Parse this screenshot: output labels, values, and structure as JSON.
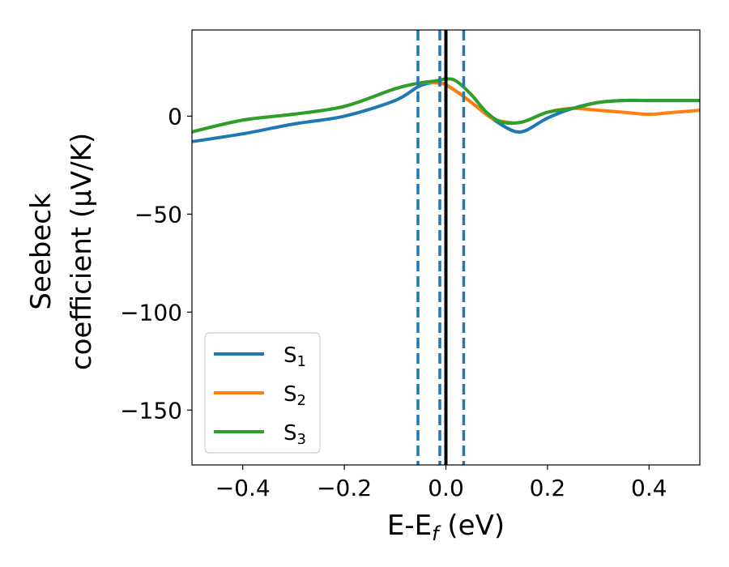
{
  "chart_data": {
    "type": "line",
    "xlabel": "E-E",
    "xlabel_sub": "f",
    "xlabel_unit": " (eV)",
    "ylabel_line1": "Seebeck",
    "ylabel_line2": "coefficient  (μV/K)",
    "xlim": [
      -0.5,
      0.5
    ],
    "ylim": [
      -178,
      44
    ],
    "xticks": [
      -0.4,
      -0.2,
      0.0,
      0.2,
      0.4
    ],
    "xtick_labels": [
      "−0.4",
      "−0.2",
      "0.0",
      "0.2",
      "0.4"
    ],
    "yticks": [
      0,
      -50,
      -100,
      -150
    ],
    "ytick_labels": [
      "0",
      "−50",
      "−100",
      "−150"
    ],
    "grid": false,
    "legend_position": "lower-left",
    "vlines": [
      {
        "x": -0.055,
        "style": "dashed",
        "color": "#1f77b4"
      },
      {
        "x": -0.012,
        "style": "dashed",
        "color": "#1f77b4"
      },
      {
        "x": 0.035,
        "style": "dashed",
        "color": "#1f77b4"
      },
      {
        "x": 0.0,
        "style": "solid",
        "color": "#000000"
      }
    ],
    "series": [
      {
        "name": "S",
        "sub": "1",
        "color": "#1f77b4",
        "x": [
          -0.5,
          -0.4,
          -0.3,
          -0.2,
          -0.1,
          -0.055,
          -0.03,
          -0.012,
          0.0,
          0.03,
          0.06,
          0.09,
          0.12,
          0.14,
          0.16,
          0.2,
          0.25,
          0.3,
          0.35,
          0.4,
          0.45,
          0.5
        ],
        "y": [
          -13,
          -9,
          -4,
          0,
          8,
          15,
          17,
          17,
          16,
          11,
          5,
          -1,
          -6,
          -8,
          -7,
          -1,
          4,
          7,
          8,
          8,
          8,
          8
        ]
      },
      {
        "name": "S",
        "sub": "2",
        "color": "#ff7f0e",
        "x": [
          -0.5,
          -0.4,
          -0.3,
          -0.2,
          -0.1,
          -0.05,
          -0.02,
          0.0,
          0.03,
          0.06,
          0.09,
          0.12,
          0.15,
          0.2,
          0.25,
          0.3,
          0.35,
          0.4,
          0.45,
          0.5
        ],
        "y": [
          -8,
          -2,
          1,
          5,
          14,
          17,
          17,
          16,
          11,
          5,
          -1,
          -3,
          -3,
          2,
          4,
          3,
          2,
          1,
          2,
          3
        ]
      },
      {
        "name": "S",
        "sub": "3",
        "color": "#2ca02c",
        "x": [
          -0.5,
          -0.4,
          -0.3,
          -0.2,
          -0.1,
          -0.05,
          -0.02,
          0.0,
          0.02,
          0.05,
          0.08,
          0.11,
          0.15,
          0.2,
          0.25,
          0.3,
          0.35,
          0.4,
          0.45,
          0.5
        ],
        "y": [
          -8,
          -2,
          1,
          5,
          14,
          17,
          18,
          19,
          18,
          11,
          2,
          -3,
          -3,
          2,
          4,
          7,
          8,
          8,
          8,
          8
        ]
      }
    ]
  }
}
